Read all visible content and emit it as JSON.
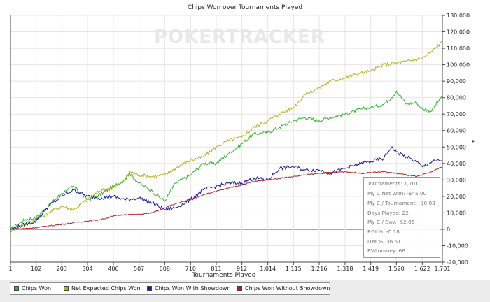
{
  "watermark": "POKERTRACKER",
  "chart_data": {
    "type": "line",
    "title": "Chips Won over Tournaments Played",
    "xlabel": "Tournaments Played",
    "ylabel": "",
    "xlim": [
      1,
      1701
    ],
    "ylim": [
      -20000,
      130000
    ],
    "x_ticks": [
      "1",
      "102",
      "203",
      "304",
      "406",
      "507",
      "608",
      "710",
      "811",
      "912",
      "1,014",
      "1,115",
      "1,216",
      "1,318",
      "1,419",
      "1,520",
      "1,622",
      "1,701"
    ],
    "y_ticks": [
      "130,000",
      "120,000",
      "110,000",
      "100,000",
      "90,000",
      "80,000",
      "70,000",
      "60,000",
      "50,000",
      "40,000",
      "30,000",
      "20,000",
      "10,000",
      "0",
      "-10,000",
      "-20,000"
    ],
    "y_tick_values": [
      130000,
      120000,
      110000,
      100000,
      90000,
      80000,
      70000,
      60000,
      50000,
      40000,
      30000,
      20000,
      10000,
      0,
      -10000,
      -20000
    ],
    "grid": true,
    "legend_position": "bottom",
    "series": [
      {
        "name": "Chips Won",
        "color": "#2fb52f",
        "x": [
          1,
          30,
          60,
          102,
          150,
          203,
          250,
          304,
          340,
          406,
          450,
          470,
          507,
          560,
          608,
          650,
          710,
          760,
          811,
          860,
          912,
          960,
          1014,
          1060,
          1115,
          1160,
          1216,
          1260,
          1318,
          1380,
          1419,
          1470,
          1500,
          1520,
          1560,
          1600,
          1622,
          1660,
          1690,
          1701
        ],
        "y": [
          0,
          3000,
          6000,
          7000,
          14000,
          22000,
          26000,
          18000,
          20000,
          26000,
          30000,
          34000,
          28000,
          23000,
          17000,
          28000,
          33000,
          40000,
          40000,
          46000,
          52000,
          58000,
          59000,
          62000,
          66000,
          68000,
          66000,
          68000,
          70000,
          73000,
          74000,
          76000,
          80000,
          84000,
          76000,
          77000,
          73000,
          72000,
          79000,
          80000
        ]
      },
      {
        "name": "Net Expected Chips Won",
        "color": "#b2b21e",
        "x": [
          1,
          40,
          102,
          150,
          203,
          250,
          304,
          360,
          406,
          450,
          470,
          507,
          560,
          608,
          660,
          710,
          760,
          811,
          860,
          912,
          960,
          1014,
          1060,
          1115,
          1160,
          1216,
          1260,
          1318,
          1380,
          1419,
          1470,
          1520,
          1560,
          1622,
          1660,
          1701
        ],
        "y": [
          -1000,
          2000,
          6000,
          10000,
          14000,
          12000,
          18000,
          24000,
          25000,
          30000,
          35000,
          33000,
          32000,
          33000,
          38000,
          42000,
          44000,
          50000,
          54000,
          56000,
          62000,
          66000,
          70000,
          74000,
          82000,
          86000,
          90000,
          92000,
          95000,
          96000,
          100000,
          101000,
          102000,
          104000,
          108000,
          114000
        ]
      },
      {
        "name": "Chips Won With Showdown",
        "color": "#1a1aa8",
        "x": [
          1,
          60,
          102,
          150,
          203,
          250,
          304,
          360,
          406,
          450,
          507,
          560,
          608,
          650,
          710,
          760,
          811,
          860,
          912,
          960,
          1014,
          1060,
          1115,
          1160,
          1216,
          1260,
          1318,
          1380,
          1419,
          1470,
          1500,
          1520,
          1560,
          1600,
          1622,
          1660,
          1701
        ],
        "y": [
          0,
          3000,
          5000,
          14000,
          20000,
          24000,
          20000,
          19000,
          20000,
          18000,
          19000,
          16000,
          12000,
          13000,
          18000,
          24000,
          26000,
          28000,
          28000,
          31000,
          30000,
          37000,
          38000,
          36000,
          36000,
          34000,
          37000,
          40000,
          41000,
          43000,
          50000,
          47000,
          44000,
          41000,
          38000,
          41000,
          42000
        ]
      },
      {
        "name": "Chips Won Without Showdown",
        "color": "#b21e1e",
        "x": [
          1,
          60,
          102,
          150,
          203,
          250,
          304,
          360,
          406,
          450,
          507,
          560,
          608,
          660,
          710,
          760,
          811,
          860,
          912,
          960,
          1014,
          1060,
          1115,
          1160,
          1216,
          1260,
          1318,
          1380,
          1419,
          1470,
          1520,
          1560,
          1600,
          1622,
          1660,
          1701
        ],
        "y": [
          0,
          500,
          1000,
          2000,
          3000,
          4000,
          5000,
          6000,
          8000,
          9000,
          9000,
          10000,
          13000,
          16000,
          18000,
          21000,
          23000,
          25000,
          27000,
          29000,
          30000,
          31000,
          32000,
          33000,
          34000,
          34500,
          35000,
          34000,
          34500,
          35000,
          34000,
          33000,
          32000,
          33000,
          35000,
          38000
        ]
      }
    ]
  },
  "stats": {
    "tournaments": "Tournaments: 1,701",
    "net_won": "My C Net Won: -$45.00",
    "per_tournament": "My C / Tournament: -$0.03",
    "days_played": "Days Played: 22",
    "per_day": "My C / Day: -$2.05",
    "roi": "ROI %: -0.18",
    "itm": "ITM %: 36.51",
    "ev": "EV/tourney: 66"
  }
}
